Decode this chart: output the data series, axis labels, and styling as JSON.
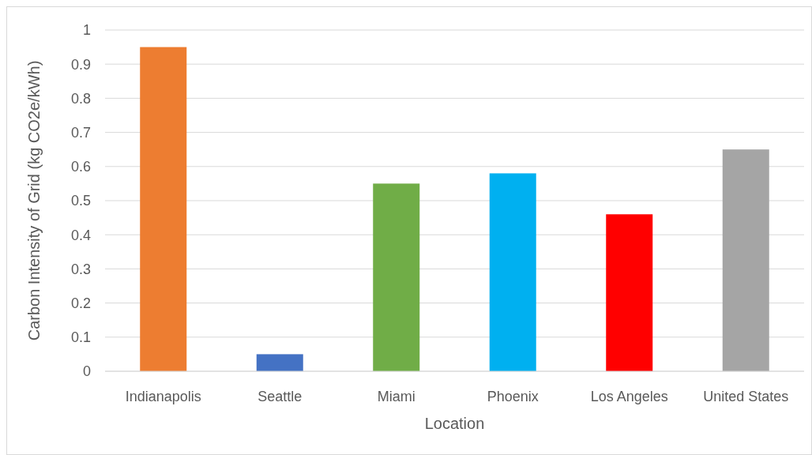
{
  "chart_data": {
    "type": "bar",
    "xlabel": "Location",
    "ylabel": "Carbon Intensity of Grid (kg CO2e/kWh)",
    "categories": [
      "Indianapolis",
      "Seattle",
      "Miami",
      "Phoenix",
      "Los Angeles",
      "United States"
    ],
    "values": [
      0.95,
      0.05,
      0.55,
      0.58,
      0.46,
      0.65
    ],
    "colors": [
      "#ed7d31",
      "#4472c4",
      "#70ad47",
      "#00b0f0",
      "#ff0000",
      "#a5a5a5"
    ],
    "ylim": [
      0,
      1
    ],
    "yticks": [
      0,
      0.1,
      0.2,
      0.3,
      0.4,
      0.5,
      0.6,
      0.7,
      0.8,
      0.9,
      1
    ],
    "grid": "y"
  }
}
